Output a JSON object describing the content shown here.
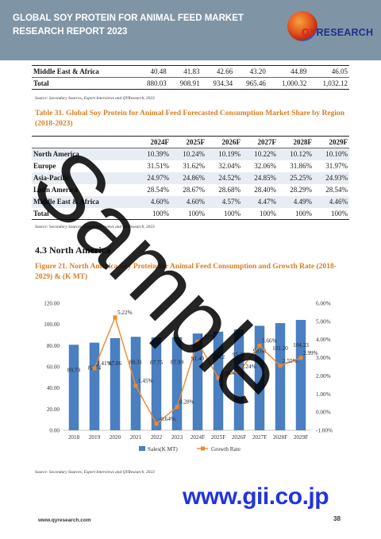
{
  "header": {
    "title": "GLOBAL SOY PROTEIN FOR ANIMAL FEED MARKET RESEARCH REPORT 2023",
    "logo_prefix": "QY",
    "logo_suffix": "RESEARCH"
  },
  "table_top": {
    "rows": [
      {
        "label": "Middle East & Africa",
        "values": [
          "40.48",
          "41.83",
          "42.66",
          "43.20",
          "44.89",
          "46.05"
        ]
      },
      {
        "label": "Total",
        "values": [
          "880.03",
          "908.91",
          "934.34",
          "965.46",
          "1,000.32",
          "1,032.12"
        ]
      }
    ]
  },
  "source_1": "Source: Secondary Sources, Expert Interviews and QYResearch, 2023",
  "table31": {
    "caption": "Table 31.   Global Soy Protein for Animal Feed Forecasted Consumption Market Share by Region (2018-2023)",
    "headers": [
      "",
      "2024F",
      "2025F",
      "2026F",
      "2027F",
      "2028F",
      "2029F"
    ],
    "rows": [
      {
        "label": "North America",
        "values": [
          "10.39%",
          "10.24%",
          "10.19%",
          "10.22%",
          "10.12%",
          "10.10%"
        ]
      },
      {
        "label": "Europe",
        "values": [
          "31.51%",
          "31.62%",
          "32.04%",
          "32.06%",
          "31.86%",
          "31.97%"
        ]
      },
      {
        "label": "Asia-Pacific",
        "values": [
          "24.97%",
          "24.86%",
          "24.52%",
          "24.85%",
          "25.25%",
          "24.93%"
        ]
      },
      {
        "label": "Latin America",
        "values": [
          "28.54%",
          "28.67%",
          "28.68%",
          "28.40%",
          "28.29%",
          "28.54%"
        ]
      },
      {
        "label": "Middle East & Africa",
        "values": [
          "4.60%",
          "4.60%",
          "4.57%",
          "4.47%",
          "4.49%",
          "4.46%"
        ]
      },
      {
        "label": "Total",
        "values": [
          "100%",
          "100%",
          "100%",
          "100%",
          "100%",
          "100%"
        ]
      }
    ]
  },
  "source_2": "Source: Secondary Sources, Expert Interviews and QYResearch, 2023",
  "section_heading": "4.3  North America",
  "figure21": {
    "caption": "Figure 21.   North America Soy Protein for Animal Feed Consumption and Growth Rate (2018-2029) & (K MT)"
  },
  "chart_data": {
    "type": "bar",
    "categories": [
      "2018",
      "2019",
      "2020",
      "2021",
      "2022",
      "2023",
      "2024F",
      "2025F",
      "2026F",
      "2027F",
      "2028F",
      "2029F"
    ],
    "series": [
      {
        "name": "Sales(K MT)",
        "type": "bar",
        "axis": "left",
        "color": "#4a7fc1",
        "values": [
          80.79,
          82.74,
          87.06,
          88.31,
          87.75,
          87.99,
          91.4,
          93.12,
          95.2,
          98.68,
          101.2,
          104.23
        ],
        "labels": [
          "80.79",
          "82.74",
          "87.06",
          "88.31",
          "87.75",
          "87.99",
          "91.40",
          "93.12",
          "95.20",
          "98.68",
          "101.20",
          "104.23"
        ]
      },
      {
        "name": "Growth Rate",
        "type": "line",
        "axis": "right",
        "color": "#f0882a",
        "values": [
          null,
          2.41,
          5.22,
          1.45,
          -0.64,
          0.28,
          3.87,
          1.88,
          2.24,
          3.66,
          2.55,
          2.99
        ],
        "labels": [
          null,
          "2.41%",
          "5.22%",
          "1.45%",
          "-0.64%",
          "0.28%",
          "3.87%",
          "1.88%",
          "2.24%",
          "3.66%",
          "2.55%",
          "2.99%"
        ]
      }
    ],
    "y_left": {
      "ticks": [
        "0.00",
        "20.00",
        "40.00",
        "60.00",
        "80.00",
        "100.00",
        "120.00"
      ],
      "min": 0,
      "max": 120
    },
    "y_right": {
      "ticks": [
        "-1.00%",
        "0.00%",
        "1.00%",
        "2.00%",
        "3.00%",
        "4.00%",
        "5.00%",
        "6.00%"
      ],
      "min": -1,
      "max": 6
    },
    "grid": false,
    "legend_position": "bottom"
  },
  "source_3": "Source: Secondary Sources, Expert Interviews and QYResearch, 2023",
  "watermark": "Sample",
  "gii": "www.gii.co.jp",
  "footer": {
    "url": "www.qyresearch.com",
    "page": "38"
  }
}
